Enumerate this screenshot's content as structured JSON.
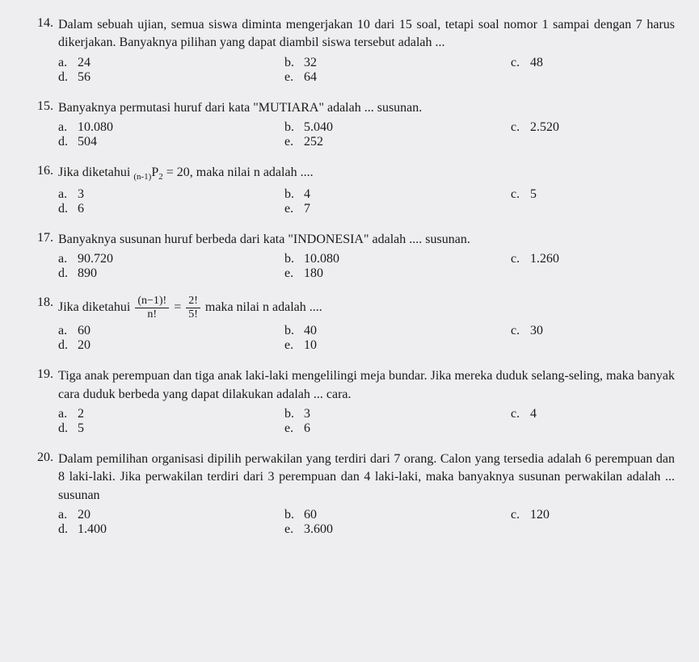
{
  "questions": [
    {
      "num": "14.",
      "text": "Dalam sebuah ujian, semua siswa diminta mengerjakan 10 dari 15 soal, tetapi soal nomor 1 sampai dengan 7 harus dikerjakan. Banyaknya pilihan yang dapat diambil siswa tersebut adalah ...",
      "opts": {
        "a": "24",
        "b": "32",
        "c": "48",
        "d": "56",
        "e": "64"
      }
    },
    {
      "num": "15.",
      "text": "Banyaknya permutasi huruf dari kata \"MUTIARA\" adalah ... susunan.",
      "opts": {
        "a": "10.080",
        "b": "5.040",
        "c": "2.520",
        "d": "504",
        "e": "252"
      }
    },
    {
      "num": "16.",
      "text_pre": "Jika diketahui  ",
      "text_sub_base": "(n-1)",
      "text_sub_p": "P",
      "text_sub_2": "2",
      "text_post": " = 20, maka nilai n adalah ....",
      "opts": {
        "a": "3",
        "b": "4",
        "c": "5",
        "d": "6",
        "e": "7"
      }
    },
    {
      "num": "17.",
      "text": "Banyaknya susunan huruf  berbeda dari kata \"INDONESIA\" adalah .... susunan.",
      "opts": {
        "a": "90.720",
        "b": "10.080",
        "c": "1.260",
        "d": "890",
        "e": "180"
      }
    },
    {
      "num": "18.",
      "text_pre": "Jika diketahui  ",
      "frac1_num": "(n−1)!",
      "frac1_den": "n!",
      "eq": " = ",
      "frac2_num": "2!",
      "frac2_den": "5!",
      "text_post": "  maka nilai  n  adalah ....",
      "opts": {
        "a": "60",
        "b": "40",
        "c": "30",
        "d": "20",
        "e": "10"
      }
    },
    {
      "num": "19.",
      "text": "Tiga anak perempuan dan tiga anak laki-laki mengelilingi meja bundar. Jika mereka duduk selang-seling, maka banyak cara duduk berbeda  yang dapat dilakukan adalah ... cara.",
      "opts": {
        "a": "2",
        "b": "3",
        "c": "4",
        "d": "5",
        "e": "6"
      }
    },
    {
      "num": "20.",
      "text": "Dalam pemilihan organisasi dipilih perwakilan yang terdiri dari 7 orang. Calon yang tersedia adalah 6 perempuan dan 8 laki-laki. Jika perwakilan terdiri dari 3 perempuan dan 4 laki-laki, maka banyaknya susunan perwakilan adalah ... susunan",
      "opts": {
        "a": "20",
        "b": "60",
        "c": "120",
        "d": "1.400",
        "e": "3.600"
      }
    }
  ],
  "labels": {
    "a": "a.",
    "b": "b.",
    "c": "c.",
    "d": "d.",
    "e": "e."
  }
}
